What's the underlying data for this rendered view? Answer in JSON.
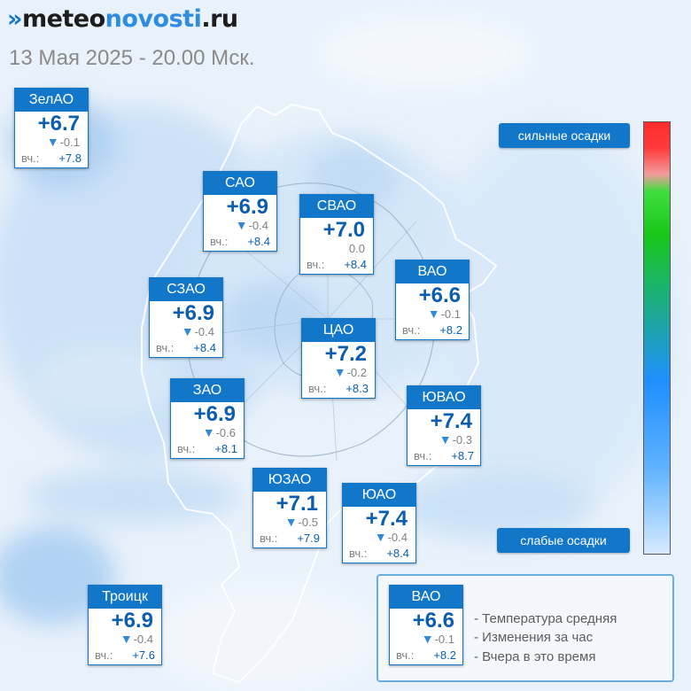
{
  "logo": {
    "mark": "»",
    "part1": "meteo",
    "part2": "novosti",
    "part3": ".ru"
  },
  "datetime": "13 Мая 2025 - 20.00 Мск.",
  "districts": [
    {
      "id": "zelao",
      "name": "ЗелАО",
      "temp": "+6.7",
      "change": "-0.1",
      "arrow": true,
      "yday_label": "вч.:",
      "yday": "+7.8"
    },
    {
      "id": "sao",
      "name": "САО",
      "temp": "+6.9",
      "change": "-0.4",
      "arrow": true,
      "yday_label": "вч.:",
      "yday": "+8.4"
    },
    {
      "id": "svao",
      "name": "СВАО",
      "temp": "+7.0",
      "change": "0.0",
      "arrow": false,
      "yday_label": "вч.:",
      "yday": "+8.4"
    },
    {
      "id": "vao",
      "name": "ВАО",
      "temp": "+6.6",
      "change": "-0.1",
      "arrow": true,
      "yday_label": "вч.:",
      "yday": "+8.2"
    },
    {
      "id": "szao",
      "name": "СЗАО",
      "temp": "+6.9",
      "change": "-0.4",
      "arrow": true,
      "yday_label": "вч.:",
      "yday": "+8.4"
    },
    {
      "id": "cao",
      "name": "ЦАО",
      "temp": "+7.2",
      "change": "-0.2",
      "arrow": true,
      "yday_label": "вч.:",
      "yday": "+8.3"
    },
    {
      "id": "zao",
      "name": "ЗАО",
      "temp": "+6.9",
      "change": "-0.6",
      "arrow": true,
      "yday_label": "вч.:",
      "yday": "+8.1"
    },
    {
      "id": "yuvao",
      "name": "ЮВАО",
      "temp": "+7.4",
      "change": "-0.3",
      "arrow": true,
      "yday_label": "вч.:",
      "yday": "+8.7"
    },
    {
      "id": "yuzao",
      "name": "ЮЗАО",
      "temp": "+7.1",
      "change": "-0.5",
      "arrow": true,
      "yday_label": "вч.:",
      "yday": "+7.9"
    },
    {
      "id": "yuao",
      "name": "ЮАО",
      "temp": "+7.4",
      "change": "-0.4",
      "arrow": true,
      "yday_label": "вч.:",
      "yday": "+8.4"
    },
    {
      "id": "troitsk",
      "name": "Троицк",
      "temp": "+6.9",
      "change": "-0.4",
      "arrow": true,
      "yday_label": "вч.:",
      "yday": "+7.6"
    }
  ],
  "precip_scale": {
    "top_label": "сильные осадки",
    "bottom_label": "слабые осадки"
  },
  "key": {
    "sample": {
      "name": "ВАО",
      "temp": "+6.6",
      "change": "-0.1",
      "yday_label": "вч.:",
      "yday": "+8.2"
    },
    "lines": [
      "- Температура средняя",
      "- Изменения за час",
      "- Вчера в это время"
    ]
  },
  "colors": {
    "accent": "#1276c9",
    "value_text": "#0b5eae",
    "arrow": "#2e89d8"
  }
}
